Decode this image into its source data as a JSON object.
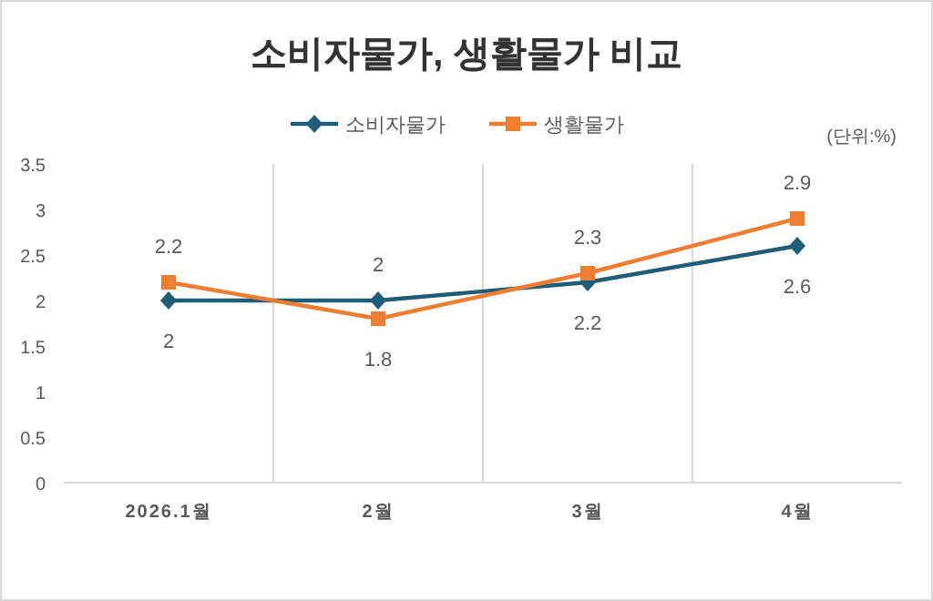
{
  "chart_data": {
    "type": "line",
    "title": "소비자물가, 생활물가 비교",
    "categories": [
      "2026.1월",
      "2월",
      "3월",
      "4월"
    ],
    "series": [
      {
        "name": "소비자물가",
        "color": "#1f5c78",
        "marker": "diamond",
        "values": [
          2,
          2,
          2.2,
          2.6
        ]
      },
      {
        "name": "생활물가",
        "color": "#ed7d31",
        "marker": "square",
        "values": [
          2.2,
          1.8,
          2.3,
          2.9
        ]
      }
    ],
    "ylim": [
      0,
      3.5
    ],
    "yticks": [
      0,
      0.5,
      1,
      1.5,
      2,
      2.5,
      3,
      3.5
    ],
    "grid": "x",
    "legend": "top",
    "data_labels": true,
    "annotations": [
      "(단위:%)"
    ]
  }
}
